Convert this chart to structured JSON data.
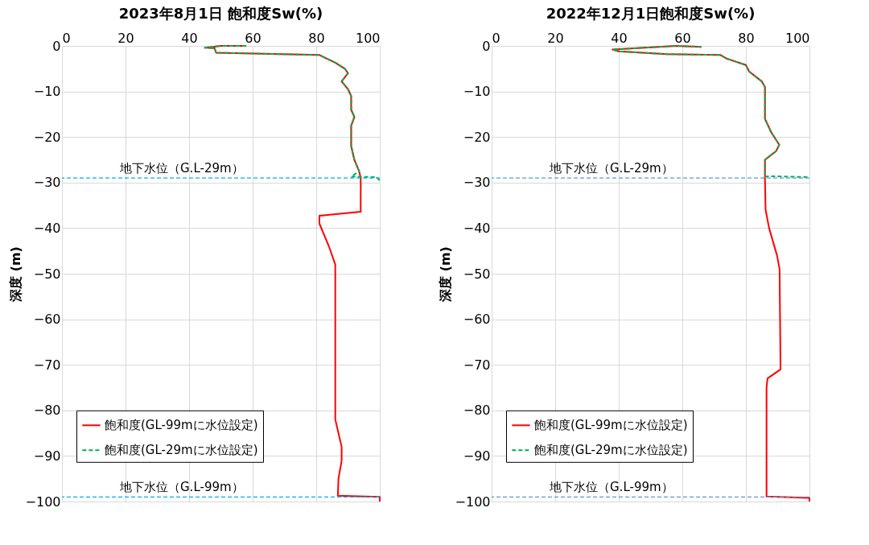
{
  "chart_data": [
    {
      "type": "line",
      "title": "2023年8月1日 飽和度Sw(%)",
      "ylabel": "深度 (m)",
      "xlim": [
        0,
        100
      ],
      "xticks": [
        0,
        20,
        40,
        60,
        80,
        100
      ],
      "ylim": [
        -100,
        0
      ],
      "yticks": [
        0,
        -10,
        -20,
        -30,
        -40,
        -50,
        -60,
        -70,
        -80,
        -90,
        -100
      ],
      "grid": true,
      "legend": "bottom left",
      "ref_lines": [
        {
          "axis": "y",
          "value": -29,
          "label": "地下水位（G.L-29m）",
          "color": "#00b0f0",
          "line_style": "dashed"
        },
        {
          "axis": "y",
          "value": -99,
          "label": "地下水位（G.L-99m）",
          "color": "#00b0f0",
          "line_style": "dashed"
        }
      ],
      "series": [
        {
          "name": "飽和度(GL-99mに水位設定)",
          "color": "#ff0000",
          "line_style": "solid",
          "x": [
            58,
            50,
            45,
            48,
            48.5,
            81,
            86,
            89,
            90,
            88,
            90,
            91,
            91,
            92,
            91,
            91,
            92,
            93.5,
            94,
            94,
            81,
            81,
            84,
            86,
            86,
            88,
            88,
            87,
            86.8,
            100,
            100
          ],
          "values": [
            0,
            0,
            -0.4,
            -0.5,
            -1.5,
            -2,
            -3.7,
            -5,
            -6,
            -7.8,
            -9.5,
            -11,
            -14,
            -15.6,
            -17.5,
            -22,
            -25,
            -27.5,
            -29,
            -36.4,
            -37.3,
            -39,
            -44,
            -48,
            -82,
            -88,
            -91,
            -95,
            -98.7,
            -99,
            -100
          ]
        },
        {
          "name": "飽和度(GL-29mに水位設定)",
          "color": "#00b050",
          "line_style": "dashed",
          "x": [
            58,
            50,
            45,
            48,
            48.5,
            81,
            86,
            89,
            90,
            88,
            90,
            91,
            91,
            92,
            91,
            91,
            92,
            93.5,
            91,
            99,
            100
          ],
          "values": [
            0,
            0,
            -0.4,
            -0.5,
            -1.5,
            -2,
            -3.7,
            -5,
            -6,
            -7.8,
            -9.5,
            -11,
            -14,
            -15.6,
            -17.5,
            -22,
            -25,
            -27.5,
            -28.7,
            -28.8,
            -29.6
          ]
        }
      ]
    },
    {
      "type": "line",
      "title": "2022年12月1日飽和度Sw(%)",
      "ylabel": "深度 (m)",
      "xlim": [
        0,
        100
      ],
      "xticks": [
        0,
        20,
        40,
        60,
        80,
        100
      ],
      "ylim": [
        -100,
        0
      ],
      "yticks": [
        0,
        -10,
        -20,
        -30,
        -40,
        -50,
        -60,
        -70,
        -80,
        -90,
        -100
      ],
      "grid": true,
      "legend": "bottom left",
      "ref_lines": [
        {
          "axis": "y",
          "value": -29,
          "label": "地下水位（G.L-29m）",
          "color": "#5b9bd5",
          "line_style": "dashed"
        },
        {
          "axis": "y",
          "value": -99,
          "label": "地下水位（G.L-99m）",
          "color": "#5b9bd5",
          "line_style": "dashed"
        }
      ],
      "series": [
        {
          "name": "飽和度(GL-99mに水位設定)",
          "color": "#ff0000",
          "line_style": "solid",
          "x": [
            66,
            58,
            38,
            40,
            55,
            72,
            74,
            80,
            81,
            85,
            86,
            86,
            88,
            90.5,
            89.5,
            86,
            86,
            86.2,
            87.3,
            89.8,
            90.6,
            90.9,
            86.8,
            86.5,
            86.5,
            100,
            100
          ],
          "values": [
            -0.2,
            0,
            -0.8,
            -1.2,
            -1.8,
            -2,
            -2.8,
            -4.2,
            -5.6,
            -7.8,
            -9,
            -16,
            -19,
            -21.7,
            -23.1,
            -25,
            -29,
            -36,
            -40,
            -46,
            -49,
            -71,
            -73,
            -75,
            -98.9,
            -99.2,
            -100
          ]
        },
        {
          "name": "飽和度(GL-29mに水位設定)",
          "color": "#00b050",
          "line_style": "dashed",
          "x": [
            66,
            58,
            38,
            40,
            55,
            72,
            74,
            80,
            81,
            85,
            86,
            86,
            88,
            90.5,
            89.5,
            86,
            86,
            87.5,
            100
          ],
          "values": [
            -0.2,
            0,
            -0.8,
            -1.2,
            -1.8,
            -2,
            -2.8,
            -4.2,
            -5.6,
            -7.8,
            -9,
            -16,
            -19,
            -21.7,
            -23.1,
            -25,
            -28.7,
            -28.6,
            -28.8
          ]
        }
      ]
    }
  ]
}
